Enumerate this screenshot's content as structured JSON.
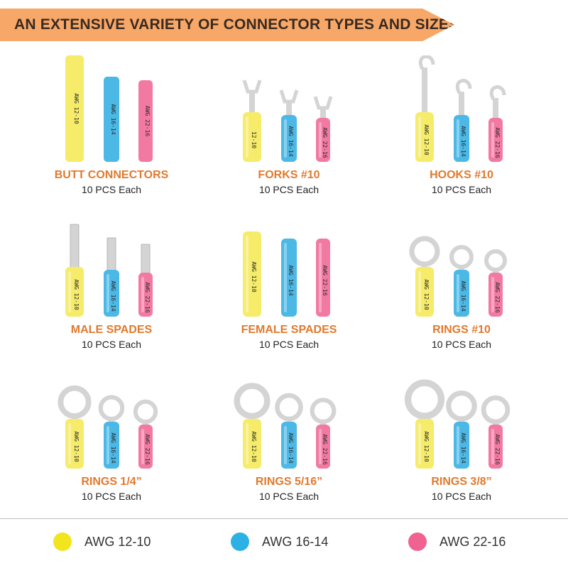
{
  "header": {
    "title": "AN EXTENSIVE VARIETY OF CONNECTOR TYPES AND SIZES"
  },
  "products": [
    {
      "title": "BUTT CONNECTORS",
      "subtitle": "10 PCS Each",
      "kind": "butt",
      "labels": [
        "AWG 12-10",
        "AWG 16-14",
        "AWG 22-16"
      ]
    },
    {
      "title": "FORKS #10",
      "subtitle": "10 PCS Each",
      "kind": "fork",
      "labels": [
        "12-10",
        "AWG 16-14",
        "AWG 22-16"
      ]
    },
    {
      "title": "HOOKS #10",
      "subtitle": "10 PCS Each",
      "kind": "hook",
      "labels": [
        "AWG 12-10",
        "AWG 16-14",
        "AWG 22-16"
      ]
    },
    {
      "title": "MALE SPADES",
      "subtitle": "10 PCS Each",
      "kind": "male",
      "labels": [
        "AWG 12-10",
        "AWG 16-14",
        "AWG 22-16"
      ]
    },
    {
      "title": "FEMALE SPADES",
      "subtitle": "10 PCS Each",
      "kind": "female",
      "labels": [
        "AWG 12-10",
        "AWG 16-14",
        "AWG 22-16"
      ]
    },
    {
      "title": "RINGS #10",
      "subtitle": "10 PCS Each",
      "kind": "ring",
      "ring": 0.5,
      "labels": [
        "AWG 12-10",
        "AWG 16-14",
        "AWG 22-16"
      ]
    },
    {
      "title": "RINGS 1/4”",
      "subtitle": "10 PCS Each",
      "kind": "ring",
      "ring": 0.65,
      "labels": [
        "AWG 12-10",
        "AWG 16-14",
        "AWG 22-16"
      ]
    },
    {
      "title": "RINGS 5/16”",
      "subtitle": "10 PCS Each",
      "kind": "ring",
      "ring": 0.8,
      "labels": [
        "AWG 12-10",
        "AWG 16-14",
        "AWG 22-16"
      ]
    },
    {
      "title": "RINGS 3/8”",
      "subtitle": "10 PCS Each",
      "kind": "ring",
      "ring": 1.0,
      "labels": [
        "AWG 12-10",
        "AWG 16-14",
        "AWG 22-16"
      ]
    }
  ],
  "legend": [
    {
      "label": "AWG 12-10",
      "color": "#f2e51e"
    },
    {
      "label": "AWG 16-14",
      "color": "#2bb1e3"
    },
    {
      "label": "AWG 22-16",
      "color": "#f0628f"
    }
  ],
  "tube_colors": {
    "yellow": "#f6ec6a",
    "blue": "#4cb8e6",
    "pink": "#f27aa2",
    "metal": "#d4d4d4"
  }
}
